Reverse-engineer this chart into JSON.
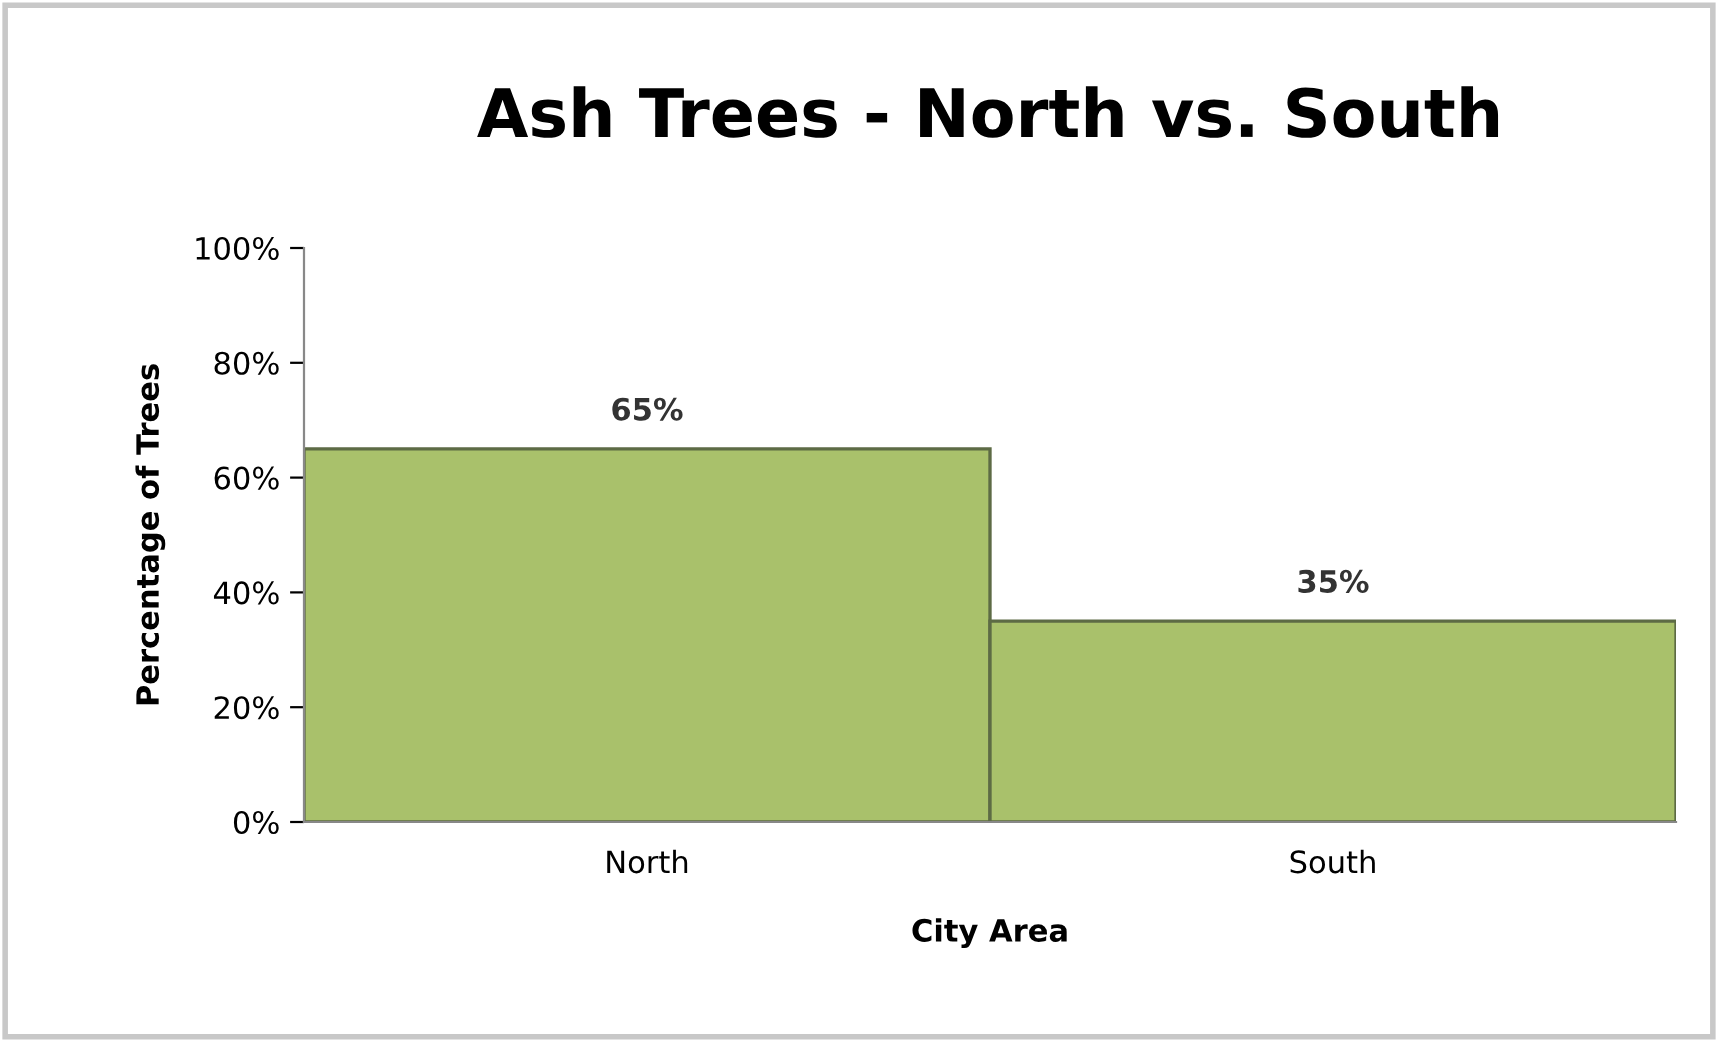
{
  "chart_data": {
    "type": "bar",
    "title": "Ash Trees - North vs. South",
    "xlabel": "City Area",
    "ylabel": "Percentage of Trees",
    "categories": [
      "North",
      "South"
    ],
    "values": [
      65,
      35
    ],
    "color": "#a9c16b",
    "value_labels": [
      "65%",
      "35%"
    ],
    "ylim": [
      0,
      100
    ],
    "yticks": [
      {
        "value": 0,
        "label": "0%"
      },
      {
        "value": 20,
        "label": "20%"
      },
      {
        "value": 40,
        "label": "40%"
      },
      {
        "value": 60,
        "label": "60%"
      },
      {
        "value": 80,
        "label": "80%"
      },
      {
        "value": 100,
        "label": "100%"
      }
    ],
    "grid": false,
    "legend": false
  }
}
